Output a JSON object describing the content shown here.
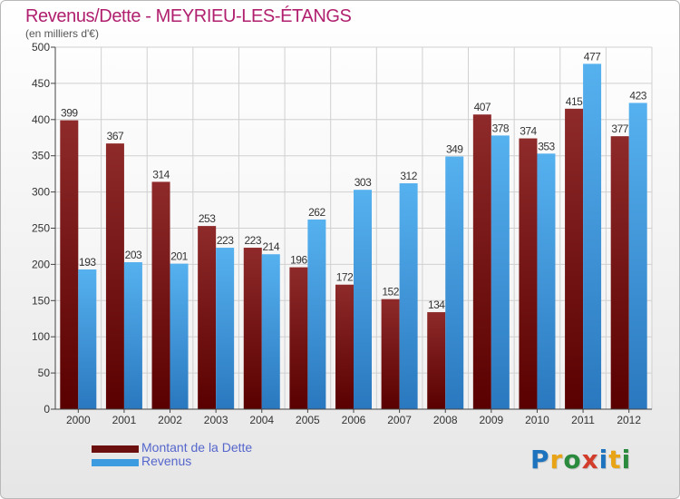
{
  "title": "Revenus/Dette - MEYRIEU-LES-ÉTANGS",
  "subtitle": "(en milliers d'€)",
  "logo": {
    "text": "Proxiti",
    "colors": [
      "#1e73be",
      "#e8a317",
      "#2a8a3e",
      "#d23c2a",
      "#1e73be",
      "#e8a317",
      "#2a8a3e"
    ]
  },
  "colors": {
    "dette": "#8b1a1a",
    "revenus": "#3d9be0",
    "axis": "#444444",
    "grid": "#d0d0d0"
  },
  "chart_data": {
    "type": "bar",
    "title": "Revenus/Dette - MEYRIEU-LES-ÉTANGS",
    "ylabel": "(en milliers d'€)",
    "categories": [
      "2000",
      "2001",
      "2002",
      "2003",
      "2004",
      "2005",
      "2006",
      "2007",
      "2008",
      "2009",
      "2010",
      "2011",
      "2012"
    ],
    "series": [
      {
        "name": "Montant de la Dette",
        "values": [
          399,
          367,
          314,
          253,
          223,
          196,
          172,
          152,
          134,
          407,
          374,
          415,
          377
        ]
      },
      {
        "name": "Revenus",
        "values": [
          193,
          203,
          201,
          223,
          214,
          262,
          303,
          312,
          349,
          378,
          353,
          477,
          423
        ]
      }
    ],
    "ylim": [
      0,
      500
    ],
    "yticks": [
      0,
      50,
      100,
      150,
      200,
      250,
      300,
      350,
      400,
      450,
      500
    ],
    "grid": true,
    "legend": "bottom-left"
  }
}
